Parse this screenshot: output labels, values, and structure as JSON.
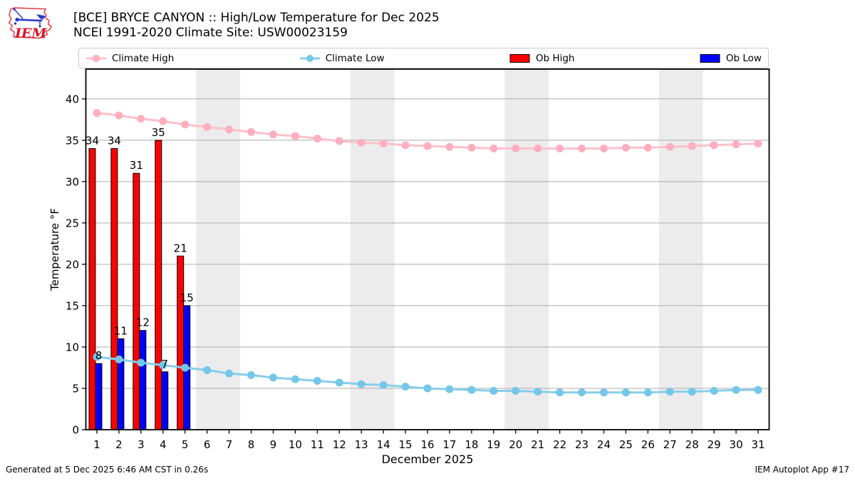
{
  "logo": {
    "text": "IEM"
  },
  "legend": [
    {
      "label": "Climate High",
      "type": "line",
      "color": "#ffc0cb",
      "marker_color": "#ffafbf"
    },
    {
      "label": "Climate Low",
      "type": "line",
      "color": "#87ceeb",
      "marker_color": "#74c7e8"
    },
    {
      "label": "Ob High",
      "type": "patch",
      "color": "#ff0000"
    },
    {
      "label": "Ob Low",
      "type": "patch",
      "color": "#0000ff"
    }
  ],
  "footer": {
    "left": "Generated at 5 Dec 2025 6:46 AM CST in 0.26s",
    "right": "IEM Autoplot App #17"
  },
  "chart_data": {
    "type": "bar+line",
    "title": "[BCE] BRYCE CANYON :: High/Low Temperature for Dec 2025",
    "subtitle": "NCEI 1991-2020 Climate Site: USW00023159",
    "xlabel": "December 2025",
    "ylabel": "Temperature °F",
    "x": [
      1,
      2,
      3,
      4,
      5,
      6,
      7,
      8,
      9,
      10,
      11,
      12,
      13,
      14,
      15,
      16,
      17,
      18,
      19,
      20,
      21,
      22,
      23,
      24,
      25,
      26,
      27,
      28,
      29,
      30,
      31
    ],
    "ylim": [
      0,
      43.6
    ],
    "yticks": [
      0,
      5,
      10,
      15,
      20,
      25,
      30,
      35,
      40
    ],
    "grid": "horizontal",
    "legend_position": "top",
    "weekend_band_days": [
      [
        6,
        7
      ],
      [
        13,
        14
      ],
      [
        20,
        21
      ],
      [
        27,
        28
      ]
    ],
    "colors": {
      "band": "#ececec",
      "grid": "#adadad",
      "axis": "#000000"
    },
    "series": [
      {
        "name": "Climate High",
        "type": "line",
        "color": "#ffc0cb",
        "marker_color": "#ffafbf",
        "values": [
          38.3,
          38.0,
          37.6,
          37.3,
          36.9,
          36.6,
          36.3,
          36.0,
          35.7,
          35.5,
          35.2,
          34.9,
          34.7,
          34.6,
          34.4,
          34.3,
          34.2,
          34.1,
          34.0,
          34.0,
          34.0,
          34.0,
          34.0,
          34.0,
          34.1,
          34.1,
          34.2,
          34.3,
          34.4,
          34.5,
          34.6
        ]
      },
      {
        "name": "Climate Low",
        "type": "line",
        "color": "#87ceeb",
        "marker_color": "#74c7e8",
        "values": [
          8.8,
          8.5,
          8.1,
          7.8,
          7.5,
          7.2,
          6.8,
          6.6,
          6.3,
          6.1,
          5.9,
          5.7,
          5.5,
          5.4,
          5.2,
          5.0,
          4.9,
          4.8,
          4.7,
          4.7,
          4.6,
          4.5,
          4.5,
          4.5,
          4.5,
          4.5,
          4.6,
          4.6,
          4.7,
          4.8,
          4.8
        ]
      },
      {
        "name": "Ob High",
        "type": "bar",
        "color": "#ff0000",
        "days": [
          1,
          2,
          3,
          4,
          5
        ],
        "values": [
          34,
          34,
          31,
          35,
          21
        ]
      },
      {
        "name": "Ob Low",
        "type": "bar",
        "color": "#0000ff",
        "days": [
          1,
          2,
          3,
          4,
          5
        ],
        "values": [
          8,
          11,
          12,
          7,
          15
        ]
      }
    ]
  }
}
